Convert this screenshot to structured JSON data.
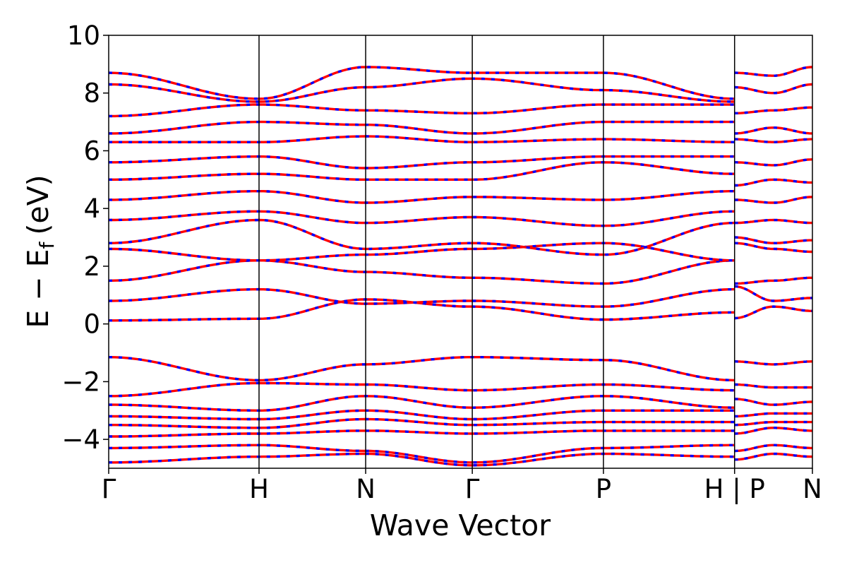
{
  "chart_data": {
    "type": "line",
    "title": "",
    "xlabel": "Wave Vector",
    "ylabel": "E − E_f (eV)",
    "ylabel_parts": {
      "main": "E − E",
      "sub": "f",
      "unit": "(eV)"
    },
    "ylim": [
      -5,
      10
    ],
    "yticks": [
      -4,
      -2,
      0,
      2,
      4,
      6,
      8,
      10
    ],
    "ytick_labels": [
      "−4",
      "−2",
      "0",
      "2",
      "4",
      "6",
      "8",
      "10"
    ],
    "xlim": [
      0,
      6.6
    ],
    "kpoints": [
      {
        "label": "Γ",
        "x": 0.0
      },
      {
        "label": "H",
        "x": 1.41
      },
      {
        "label": "N",
        "x": 2.41
      },
      {
        "label": "Γ",
        "x": 3.41
      },
      {
        "label": "P",
        "x": 4.64
      },
      {
        "label": "H | P",
        "x": 5.87
      },
      {
        "label": "N",
        "x": 6.6
      }
    ],
    "segment_breaks": [
      5.87
    ],
    "grid": false,
    "legend": "none",
    "series_style": {
      "solid_color": "#ff0000",
      "dashed_color": "#0000ff"
    },
    "bands": [
      [
        0.12,
        0.18,
        0.85,
        0.6,
        0.15,
        0.4,
        0.2,
        0.6,
        0.45
      ],
      [
        -1.15,
        -1.95,
        -1.4,
        -1.15,
        -1.25,
        -1.95,
        -1.3,
        -1.4,
        -1.3
      ],
      [
        -2.5,
        -2.05,
        -2.1,
        -2.3,
        -2.1,
        -2.3,
        -2.1,
        -2.2,
        -2.2
      ],
      [
        -2.8,
        -3.0,
        -2.5,
        -2.9,
        -2.5,
        -2.9,
        -2.6,
        -2.8,
        -2.7
      ],
      [
        -3.2,
        -3.3,
        -3.0,
        -3.3,
        -3.0,
        -3.0,
        -3.2,
        -3.1,
        -3.1
      ],
      [
        -3.5,
        -3.6,
        -3.3,
        -3.5,
        -3.4,
        -3.4,
        -3.5,
        -3.4,
        -3.4
      ],
      [
        -3.9,
        -3.8,
        -3.7,
        -3.8,
        -3.7,
        -3.7,
        -3.8,
        -3.6,
        -3.7
      ],
      [
        -4.3,
        -4.2,
        -4.4,
        -4.8,
        -4.3,
        -4.2,
        -4.4,
        -4.2,
        -4.3
      ],
      [
        -4.8,
        -4.6,
        -4.5,
        -4.9,
        -4.5,
        -4.6,
        -4.7,
        -4.5,
        -4.6
      ],
      [
        0.8,
        1.2,
        0.7,
        0.8,
        0.6,
        1.2,
        1.3,
        0.8,
        0.9
      ],
      [
        1.5,
        2.2,
        1.8,
        1.6,
        1.4,
        2.2,
        1.4,
        1.5,
        1.6
      ],
      [
        2.6,
        2.2,
        2.4,
        2.6,
        2.8,
        2.2,
        2.8,
        2.6,
        2.5
      ],
      [
        2.8,
        3.6,
        2.6,
        2.8,
        2.4,
        3.5,
        3.0,
        2.8,
        2.9
      ],
      [
        3.6,
        3.9,
        3.5,
        3.7,
        3.4,
        3.9,
        3.5,
        3.6,
        3.5
      ],
      [
        4.3,
        4.6,
        4.2,
        4.4,
        4.3,
        4.6,
        4.3,
        4.2,
        4.4
      ],
      [
        5.0,
        5.2,
        5.0,
        5.0,
        5.6,
        5.2,
        4.8,
        5.0,
        4.9
      ],
      [
        5.6,
        5.8,
        5.4,
        5.6,
        5.8,
        5.8,
        5.6,
        5.5,
        5.7
      ],
      [
        6.3,
        6.3,
        6.5,
        6.3,
        6.4,
        6.3,
        6.4,
        6.3,
        6.4
      ],
      [
        6.6,
        7.0,
        6.9,
        6.6,
        7.0,
        7.0,
        6.6,
        6.8,
        6.6
      ],
      [
        7.2,
        7.6,
        7.4,
        7.3,
        7.6,
        7.6,
        7.3,
        7.4,
        7.5
      ],
      [
        8.3,
        7.7,
        8.2,
        8.5,
        8.1,
        7.7,
        8.2,
        8.0,
        8.3
      ],
      [
        8.7,
        7.8,
        8.9,
        8.7,
        8.7,
        7.8,
        8.7,
        8.6,
        8.9
      ]
    ]
  }
}
